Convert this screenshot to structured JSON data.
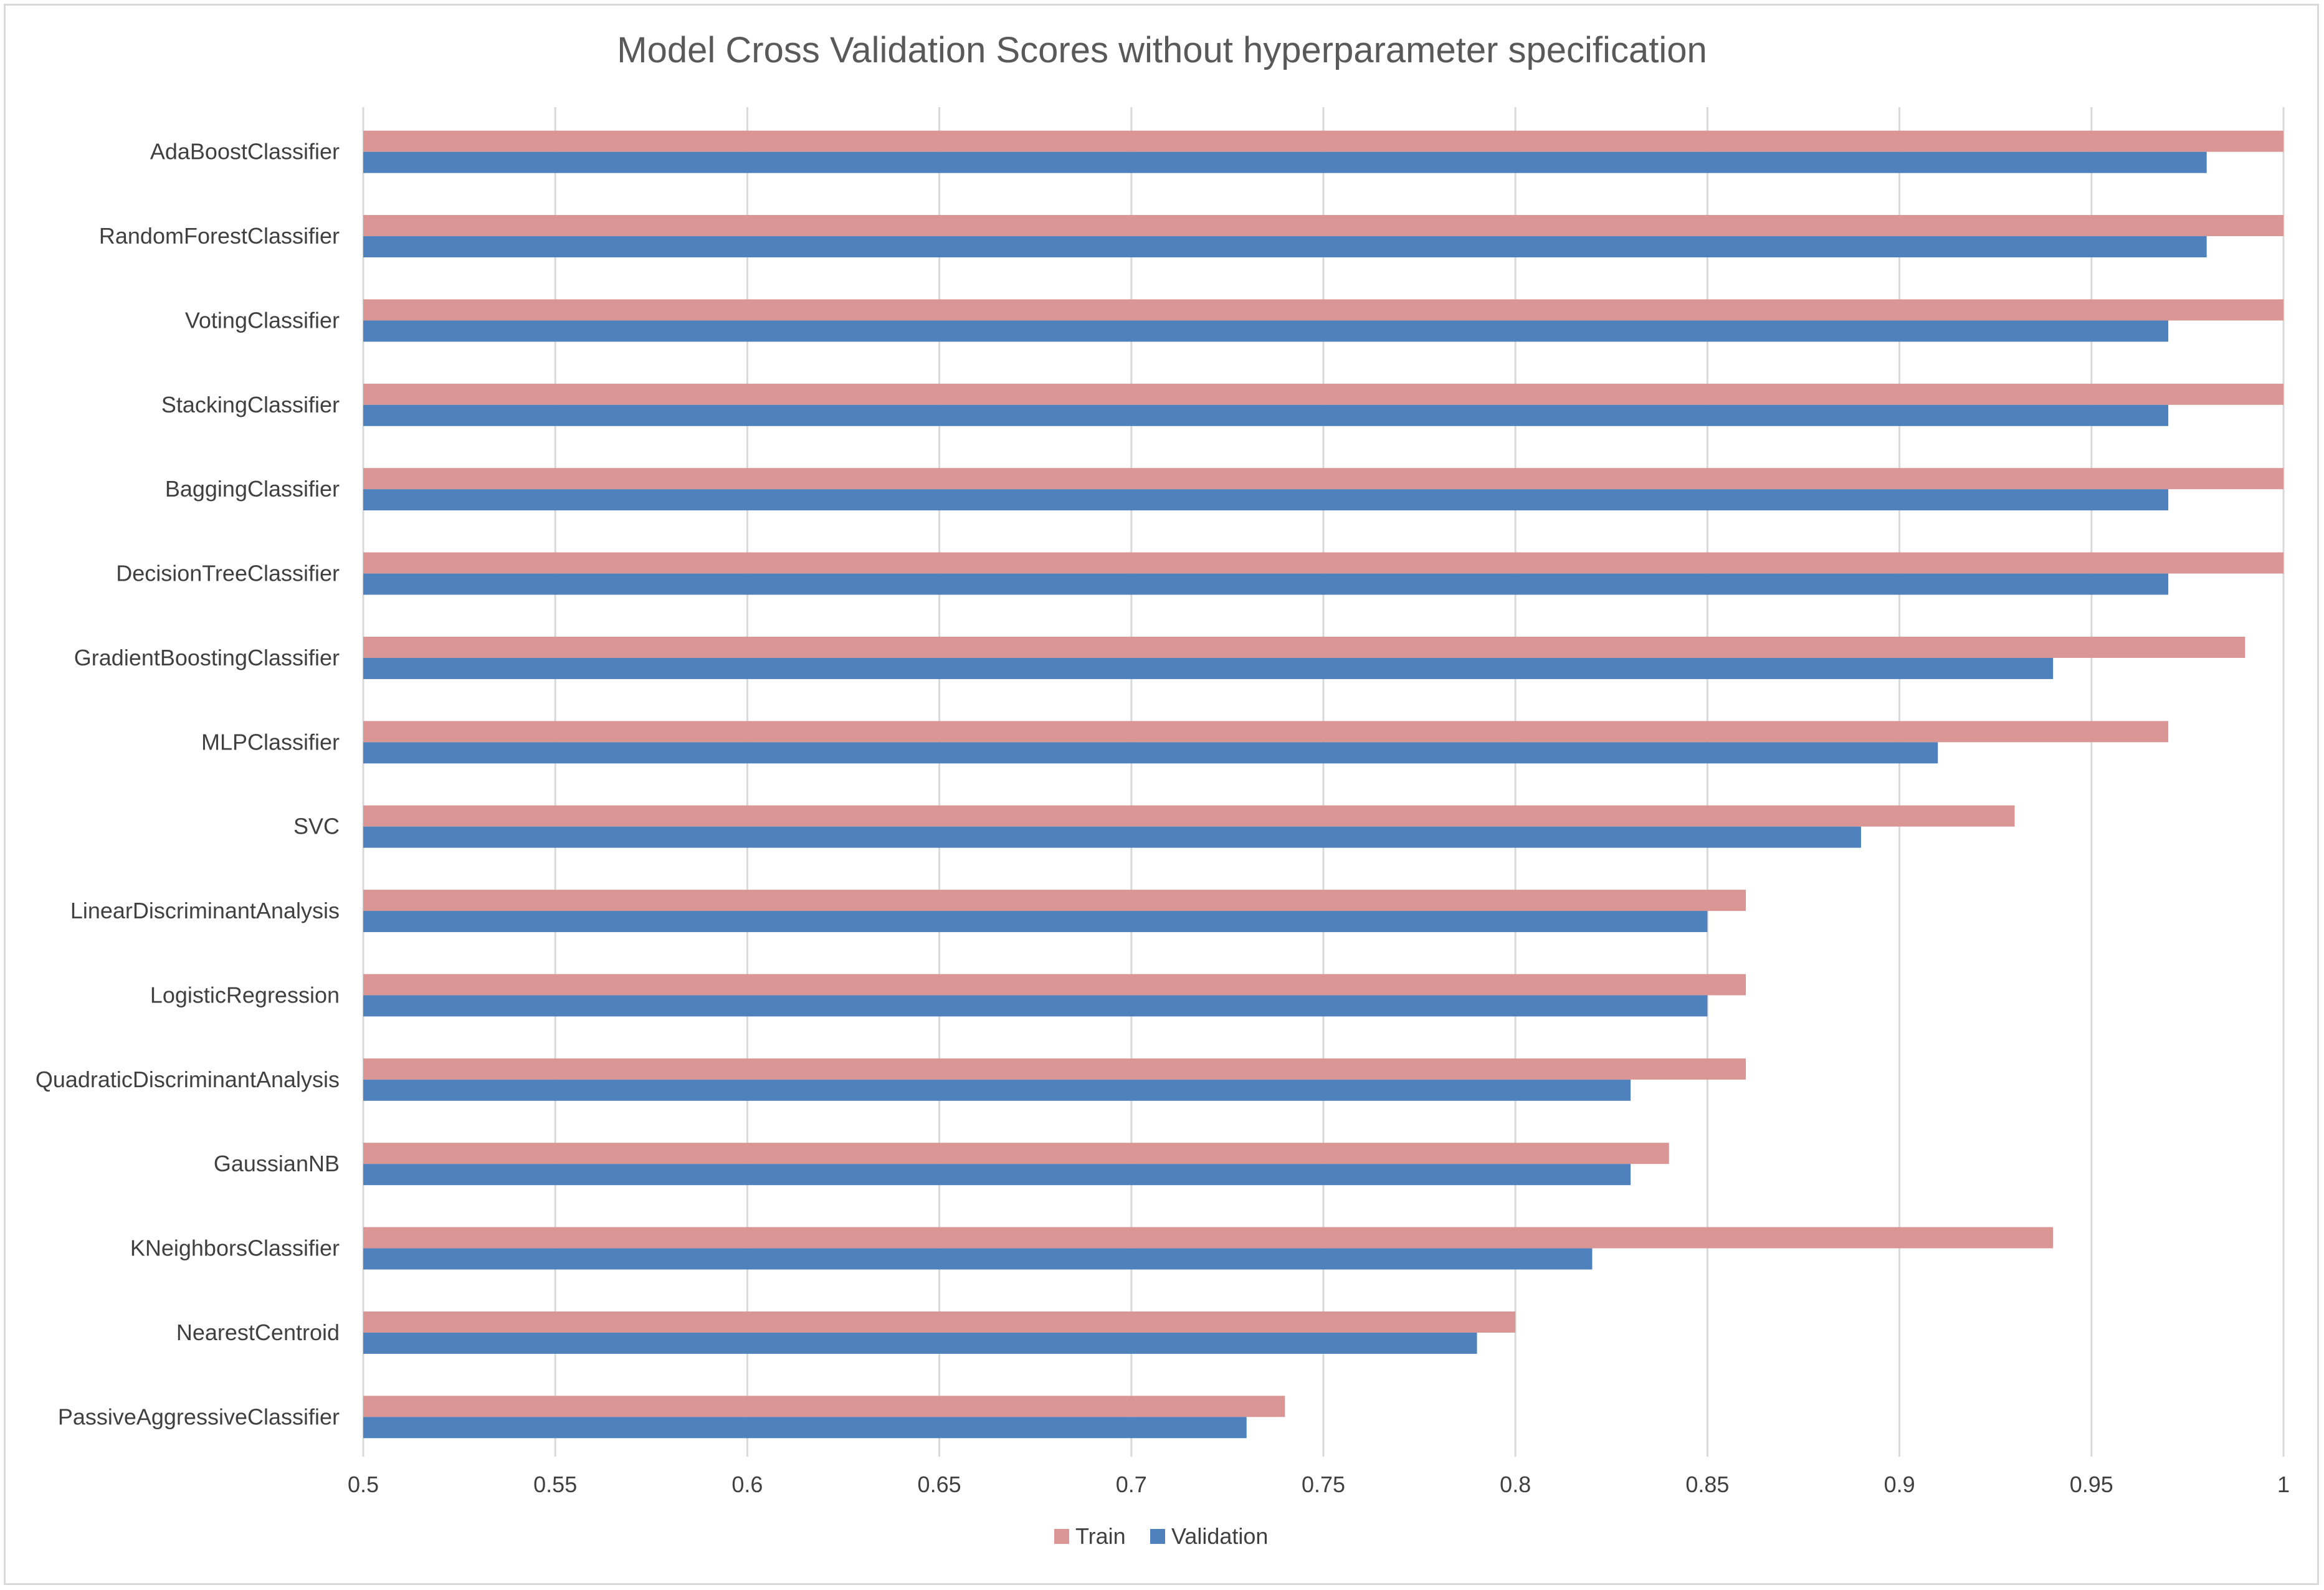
{
  "chart_data": {
    "type": "bar",
    "orientation": "horizontal",
    "title": "Model Cross Validation Scores without hyperparameter specification",
    "categories": [
      "AdaBoostClassifier",
      "RandomForestClassifier",
      "VotingClassifier",
      "StackingClassifier",
      "BaggingClassifier",
      "DecisionTreeClassifier",
      "GradientBoostingClassifier",
      "MLPClassifier",
      "SVC",
      "LinearDiscriminantAnalysis",
      "LogisticRegression",
      "QuadraticDiscriminantAnalysis",
      "GaussianNB",
      "KNeighborsClassifier",
      "NearestCentroid",
      "PassiveAggressiveClassifier"
    ],
    "series": [
      {
        "name": "Train",
        "color": "#d99694",
        "values": [
          1.0,
          1.0,
          1.0,
          1.0,
          1.0,
          1.0,
          0.99,
          0.97,
          0.93,
          0.86,
          0.86,
          0.86,
          0.84,
          0.94,
          0.8,
          0.74
        ]
      },
      {
        "name": "Validation",
        "color": "#4f81bd",
        "values": [
          0.98,
          0.98,
          0.97,
          0.97,
          0.97,
          0.97,
          0.94,
          0.91,
          0.89,
          0.85,
          0.85,
          0.83,
          0.83,
          0.82,
          0.79,
          0.73
        ]
      }
    ],
    "xlim": [
      0.5,
      1.0
    ],
    "xticks": [
      "0.5",
      "0.55",
      "0.6",
      "0.65",
      "0.7",
      "0.75",
      "0.8",
      "0.85",
      "0.9",
      "0.95",
      "1"
    ],
    "grid": true,
    "legend_position": "bottom"
  }
}
